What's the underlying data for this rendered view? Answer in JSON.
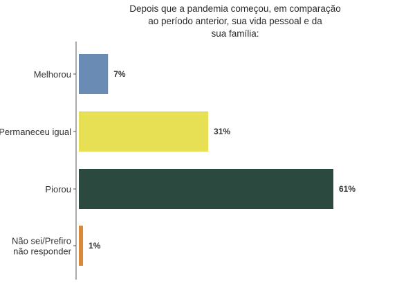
{
  "chart_data": {
    "type": "bar",
    "orientation": "horizontal",
    "title_lines": [
      "Depois que a pandemia começou, em comparação",
      "ao período anterior, sua vida pessoal e da",
      "sua família:"
    ],
    "categories": [
      "Melhorou",
      "Permaneceu igual",
      "Piorou",
      "Não sei/Prefiro não responder"
    ],
    "category_lines": [
      [
        "Melhorou"
      ],
      [
        "Permaneceu igual"
      ],
      [
        "Piorou"
      ],
      [
        "Não sei/Prefiro",
        "não responder"
      ]
    ],
    "values": [
      7,
      31,
      61,
      1
    ],
    "value_labels": [
      "7%",
      "31%",
      "61%",
      "1%"
    ],
    "colors": [
      "#6a8bb4",
      "#e8e054",
      "#2c493f",
      "#d8893a"
    ],
    "xlim": [
      0,
      61
    ],
    "grid": false,
    "legend": "none"
  }
}
